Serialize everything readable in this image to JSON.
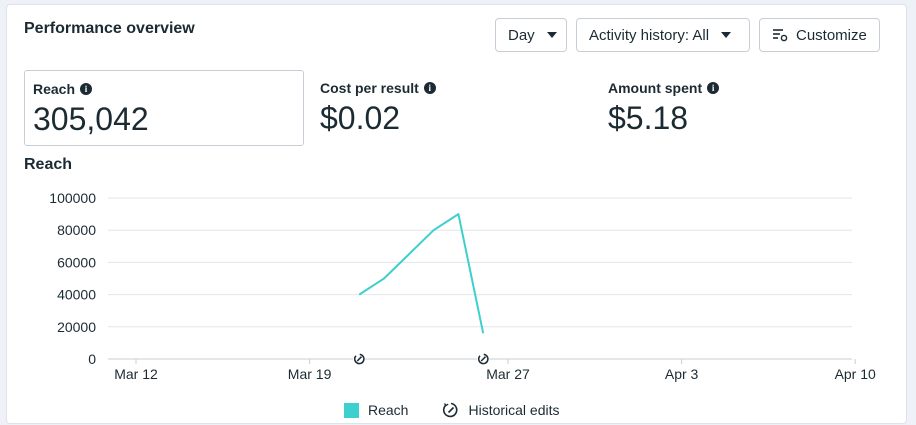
{
  "header": {
    "title": "Performance overview",
    "day_label": "Day",
    "activity_label": "Activity history: All",
    "customize_label": "Customize"
  },
  "metrics": [
    {
      "label": "Reach",
      "value": "305,042"
    },
    {
      "label": "Cost per result",
      "value": "$0.02"
    },
    {
      "label": "Amount spent",
      "value": "$5.18"
    }
  ],
  "chart_title": "Reach",
  "legend": {
    "series_label": "Reach",
    "edits_label": "Historical edits"
  },
  "colors": {
    "series": "#3ecfcf",
    "grid": "#e3e6ea",
    "text": "#1c2b33"
  },
  "chart_data": {
    "type": "line",
    "title": "Reach",
    "xlabel": "",
    "ylabel": "",
    "ylim": [
      0,
      100000
    ],
    "y_ticks": [
      0,
      20000,
      40000,
      60000,
      80000,
      100000
    ],
    "x_ticks": [
      "Mar 12",
      "Mar 19",
      "Mar 27",
      "Apr 3",
      "Apr 10"
    ],
    "series": [
      {
        "name": "Reach",
        "x": [
          "Mar 21",
          "Mar 22",
          "Mar 23",
          "Mar 24",
          "Mar 25",
          "Mar 26"
        ],
        "values": [
          40000,
          50000,
          65000,
          80000,
          90000,
          16000
        ]
      }
    ],
    "historical_edit_markers": [
      "Mar 21",
      "Mar 26"
    ],
    "legend_position": "bottom",
    "grid": true
  }
}
